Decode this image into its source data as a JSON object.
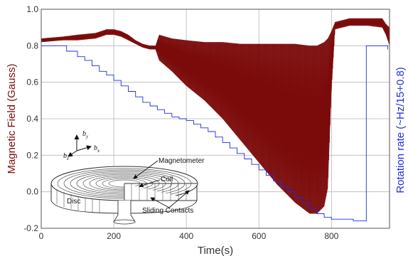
{
  "chart_data": {
    "type": "line",
    "title": "",
    "xlabel": "Time(s)",
    "ylabel": "Magnetic Field (Gauss)",
    "y2label": "Rotation rate (~Hz/15+0.8)",
    "xlim": [
      0,
      960
    ],
    "ylim": [
      -0.2,
      1.0
    ],
    "grid": true,
    "x_ticks": [
      0,
      200,
      400,
      600,
      800
    ],
    "x_tick_labels": [
      "0",
      "200",
      "400",
      "600",
      "800"
    ],
    "y_ticks": [
      -0.2,
      0.0,
      0.2,
      0.4,
      0.6,
      0.8,
      1.0
    ],
    "y_tick_labels": [
      "-0.2",
      "0.0",
      "0.2",
      "0.4",
      "0.6",
      "0.8",
      "1.0"
    ],
    "colors": {
      "magnetic": "#7b0a0a",
      "rotation": "#1f2ee0",
      "grid": "#b8b8b8"
    },
    "series": [
      {
        "axis": "left",
        "color": "#7b0a0a",
        "style": "oscillating-band",
        "envelope": {
          "x": [
            0,
            60,
            100,
            150,
            180,
            200,
            220,
            240,
            260,
            280,
            300,
            315,
            325,
            360,
            400,
            450,
            500,
            550,
            600,
            650,
            700,
            740,
            760,
            780,
            790,
            800,
            810,
            850,
            900,
            940,
            950,
            960
          ],
          "upper": [
            0.84,
            0.85,
            0.86,
            0.87,
            0.89,
            0.89,
            0.88,
            0.86,
            0.83,
            0.81,
            0.8,
            0.8,
            0.86,
            0.84,
            0.83,
            0.82,
            0.82,
            0.81,
            0.81,
            0.81,
            0.81,
            0.8,
            0.8,
            0.82,
            0.84,
            0.88,
            0.93,
            0.95,
            0.95,
            0.95,
            0.92,
            0.9
          ],
          "lower": [
            0.82,
            0.83,
            0.83,
            0.84,
            0.86,
            0.86,
            0.85,
            0.83,
            0.81,
            0.79,
            0.78,
            0.78,
            0.72,
            0.66,
            0.58,
            0.5,
            0.4,
            0.28,
            0.16,
            0.04,
            -0.06,
            -0.12,
            -0.12,
            -0.08,
            0.02,
            0.55,
            0.89,
            0.91,
            0.91,
            0.9,
            0.86,
            0.8
          ]
        }
      },
      {
        "axis": "right",
        "color": "#1f2ee0",
        "style": "step",
        "x": [
          0,
          60,
          70,
          90,
          100,
          120,
          140,
          160,
          180,
          200,
          220,
          240,
          260,
          280,
          300,
          320,
          340,
          360,
          380,
          400,
          420,
          440,
          460,
          480,
          500,
          520,
          540,
          560,
          580,
          600,
          620,
          640,
          660,
          680,
          700,
          720,
          740,
          760,
          780,
          800,
          820,
          840,
          860,
          880,
          895,
          896,
          945,
          955
        ],
        "y": [
          0.8,
          0.8,
          0.77,
          0.77,
          0.74,
          0.72,
          0.69,
          0.66,
          0.64,
          0.61,
          0.58,
          0.55,
          0.52,
          0.49,
          0.47,
          0.45,
          0.43,
          0.41,
          0.4,
          0.39,
          0.37,
          0.35,
          0.33,
          0.3,
          0.27,
          0.24,
          0.21,
          0.18,
          0.15,
          0.12,
          0.09,
          0.06,
          0.03,
          0.0,
          -0.03,
          -0.06,
          -0.09,
          -0.12,
          -0.14,
          -0.15,
          -0.15,
          -0.15,
          -0.16,
          -0.16,
          -0.16,
          0.8,
          0.8,
          0.78
        ]
      }
    ],
    "inset": {
      "axis_labels": [
        "b",
        "b",
        "b"
      ],
      "axis_subscripts": [
        "y",
        "z",
        "x"
      ],
      "labels": [
        "Magnetometer",
        "Coil",
        "Disc",
        "Sliding Contacts"
      ]
    }
  }
}
